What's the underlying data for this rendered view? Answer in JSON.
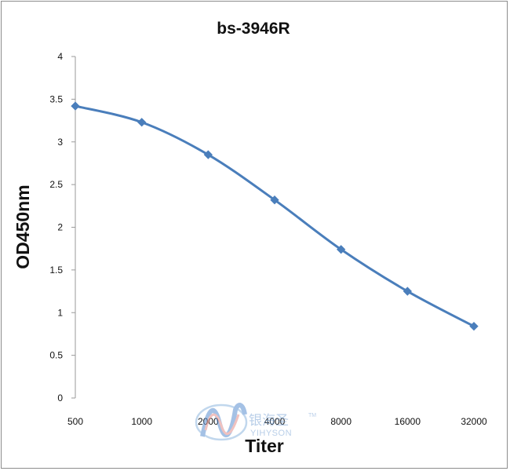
{
  "chart_data": {
    "type": "line",
    "title": "bs-3946R",
    "xlabel": "Titer",
    "ylabel": "OD450nm",
    "categories": [
      "500",
      "1000",
      "2000",
      "4000",
      "8000",
      "16000",
      "32000"
    ],
    "series": [
      {
        "values": [
          3.42,
          3.23,
          2.85,
          2.32,
          1.74,
          1.25,
          0.84
        ]
      }
    ],
    "ylim": [
      0,
      4
    ],
    "yticks": [
      "0",
      "0.5",
      "1",
      "1.5",
      "2",
      "2.5",
      "3",
      "3.5",
      "4"
    ],
    "grid": false,
    "legend": "none",
    "line_color": "#4a7ebb"
  },
  "watermark": {
    "chinese": "银海圣",
    "english": "YIHYSON",
    "tm": "TM"
  }
}
